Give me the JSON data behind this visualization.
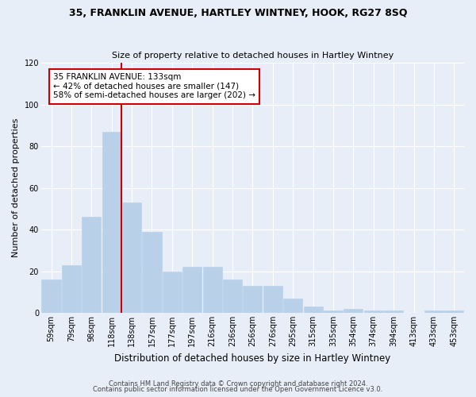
{
  "title": "35, FRANKLIN AVENUE, HARTLEY WINTNEY, HOOK, RG27 8SQ",
  "subtitle": "Size of property relative to detached houses in Hartley Wintney",
  "xlabel": "Distribution of detached houses by size in Hartley Wintney",
  "ylabel": "Number of detached properties",
  "bar_categories": [
    "59sqm",
    "79sqm",
    "98sqm",
    "118sqm",
    "138sqm",
    "157sqm",
    "177sqm",
    "197sqm",
    "216sqm",
    "236sqm",
    "256sqm",
    "276sqm",
    "295sqm",
    "315sqm",
    "335sqm",
    "354sqm",
    "374sqm",
    "394sqm",
    "413sqm",
    "433sqm",
    "453sqm"
  ],
  "bar_values": [
    16,
    23,
    46,
    87,
    53,
    39,
    20,
    22,
    22,
    16,
    13,
    13,
    7,
    3,
    1,
    2,
    1,
    1,
    0,
    1,
    1
  ],
  "bar_color": "#b8d0e8",
  "bar_edgecolor": "#b8d0e8",
  "vline_x": 3.5,
  "vline_color": "#cc0000",
  "ylim": [
    0,
    120
  ],
  "yticks": [
    0,
    20,
    40,
    60,
    80,
    100,
    120
  ],
  "annotation_title": "35 FRANKLIN AVENUE: 133sqm",
  "annotation_line1": "← 42% of detached houses are smaller (147)",
  "annotation_line2": "58% of semi-detached houses are larger (202) →",
  "annotation_box_facecolor": "#ffffff",
  "annotation_box_edgecolor": "#cc0000",
  "footer1": "Contains HM Land Registry data © Crown copyright and database right 2024.",
  "footer2": "Contains public sector information licensed under the Open Government Licence v3.0.",
  "background_color": "#e8eef8",
  "axes_background": "#e8eef8",
  "title_fontsize": 9,
  "subtitle_fontsize": 8,
  "ylabel_fontsize": 8,
  "xlabel_fontsize": 8.5,
  "tick_fontsize": 7,
  "annotation_fontsize": 7.5,
  "footer_fontsize": 6
}
